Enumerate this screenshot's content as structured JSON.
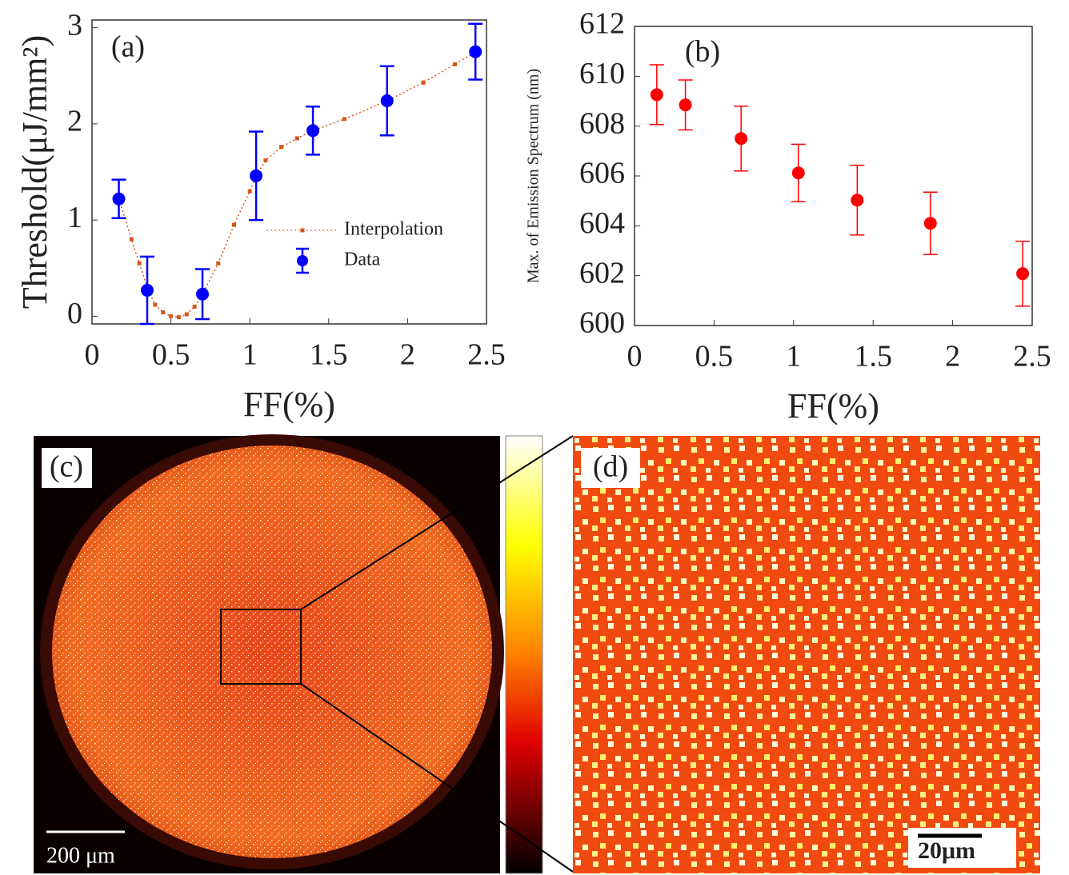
{
  "chart_data": [
    {
      "type": "errorbar",
      "annotation": "(a)",
      "x_label": "FF(%)",
      "y_label": "Threshold(μJ/mm²)",
      "xlim": [
        0,
        2.5
      ],
      "ylim": [
        -0.08,
        3.08
      ],
      "xticks": [
        0,
        0.5,
        1,
        1.5,
        2,
        2.5
      ],
      "yticks": [
        0,
        1,
        2,
        3
      ],
      "series": [
        {
          "name": "Interpolation",
          "color": "#d9541a",
          "style": "dotted",
          "x": [
            0.17,
            0.25,
            0.3,
            0.35,
            0.4,
            0.45,
            0.5,
            0.55,
            0.6,
            0.65,
            0.7,
            0.8,
            0.9,
            1.0,
            1.04,
            1.1,
            1.2,
            1.3,
            1.4,
            1.6,
            1.87,
            2.1,
            2.3,
            2.43
          ],
          "values": [
            1.22,
            0.8,
            0.55,
            0.3,
            0.12,
            0.04,
            0.0,
            -0.01,
            0.02,
            0.1,
            0.23,
            0.55,
            0.95,
            1.3,
            1.46,
            1.62,
            1.76,
            1.85,
            1.93,
            2.05,
            2.24,
            2.43,
            2.62,
            2.75
          ]
        },
        {
          "name": "Data",
          "color": "#0000ff",
          "style": "errorbar",
          "x": [
            0.17,
            0.35,
            0.7,
            1.04,
            1.4,
            1.87,
            2.43
          ],
          "values": [
            1.22,
            0.27,
            0.23,
            1.46,
            1.93,
            2.24,
            2.75
          ],
          "errors": [
            0.2,
            0.35,
            0.26,
            0.46,
            0.25,
            0.36,
            0.29
          ]
        }
      ]
    },
    {
      "type": "errorbar",
      "annotation": "(b)",
      "x_label": "FF(%)",
      "y_label": "Max. of Emission Spectrum (nm)",
      "xlim": [
        0,
        2.5
      ],
      "ylim": [
        600,
        612
      ],
      "xticks": [
        0,
        0.5,
        1,
        1.5,
        2,
        2.5
      ],
      "yticks": [
        600,
        602,
        604,
        606,
        608,
        610,
        612
      ],
      "series": [
        {
          "color": "#ff0000",
          "style": "errorbar",
          "x": [
            0.14,
            0.32,
            0.67,
            1.03,
            1.4,
            1.86,
            2.44
          ],
          "values": [
            609.26,
            608.85,
            607.5,
            606.12,
            605.03,
            604.1,
            602.08
          ],
          "errors": [
            1.2,
            1.0,
            1.3,
            1.15,
            1.4,
            1.25,
            1.3
          ]
        }
      ]
    }
  ],
  "panels": {
    "c": {
      "label": "(c)",
      "scale_bar": "200 μm"
    },
    "d": {
      "label": "(d)",
      "scale_bar": "20μm"
    }
  }
}
